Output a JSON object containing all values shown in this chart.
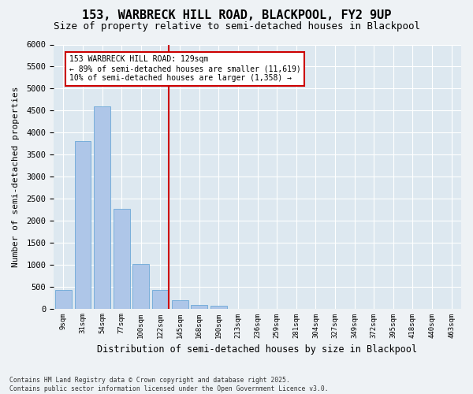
{
  "title1": "153, WARBRECK HILL ROAD, BLACKPOOL, FY2 9UP",
  "title2": "Size of property relative to semi-detached houses in Blackpool",
  "xlabel": "Distribution of semi-detached houses by size in Blackpool",
  "ylabel": "Number of semi-detached properties",
  "bin_labels": [
    "9sqm",
    "31sqm",
    "54sqm",
    "77sqm",
    "100sqm",
    "122sqm",
    "145sqm",
    "168sqm",
    "190sqm",
    "213sqm",
    "236sqm",
    "259sqm",
    "281sqm",
    "304sqm",
    "327sqm",
    "349sqm",
    "372sqm",
    "395sqm",
    "418sqm",
    "440sqm",
    "463sqm"
  ],
  "bar_heights": [
    430,
    3800,
    4600,
    2270,
    1010,
    420,
    190,
    75,
    55,
    0,
    0,
    0,
    0,
    0,
    0,
    0,
    0,
    0,
    0,
    0,
    0
  ],
  "bar_color": "#aec6e8",
  "bar_edge_color": "#5a9fd4",
  "property_line_x": 5.42,
  "property_label": "153 WARBRECK HILL ROAD: 129sqm",
  "pct_smaller": 89,
  "n_smaller": 11619,
  "pct_larger": 10,
  "n_larger": 1358,
  "ylim": [
    0,
    6000
  ],
  "yticks": [
    0,
    500,
    1000,
    1500,
    2000,
    2500,
    3000,
    3500,
    4000,
    4500,
    5000,
    5500,
    6000
  ],
  "footnote1": "Contains HM Land Registry data © Crown copyright and database right 2025.",
  "footnote2": "Contains public sector information licensed under the Open Government Licence v3.0.",
  "bg_color": "#dde8f0",
  "fig_bg_color": "#eef2f5",
  "annotation_box_facecolor": "#ffffff",
  "annotation_box_edgecolor": "#cc0000",
  "line_color": "#cc0000",
  "title_fontsize": 11,
  "subtitle_fontsize": 9
}
